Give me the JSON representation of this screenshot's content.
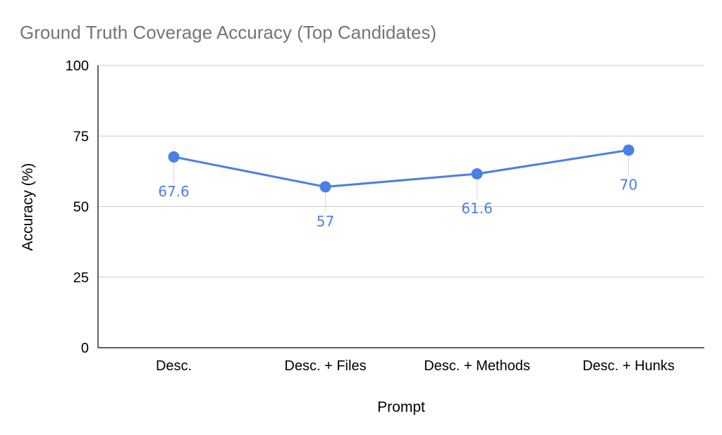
{
  "colors": {
    "series": "#4a7fe5",
    "grid": "#cccccc",
    "axis": "#000000",
    "title": "#757575",
    "label_leader": "#d9d9d9"
  },
  "chart_data": {
    "type": "line",
    "title": "Ground Truth Coverage Accuracy (Top Candidates)",
    "xlabel": "Prompt",
    "ylabel": "Accuracy (%)",
    "ylim": [
      0,
      100
    ],
    "yticks": [
      "0",
      "25",
      "50",
      "75",
      "100"
    ],
    "ytick_values": [
      0,
      25,
      50,
      75,
      100
    ],
    "grid": true,
    "legend": "none",
    "categories": [
      "Desc.",
      "Desc. + Files",
      "Desc. + Methods",
      "Desc. + Hunks"
    ],
    "series": [
      {
        "values": [
          67.6,
          57,
          61.6,
          70
        ],
        "labels": [
          "67.6",
          "57",
          "61.6",
          "70"
        ]
      }
    ]
  }
}
